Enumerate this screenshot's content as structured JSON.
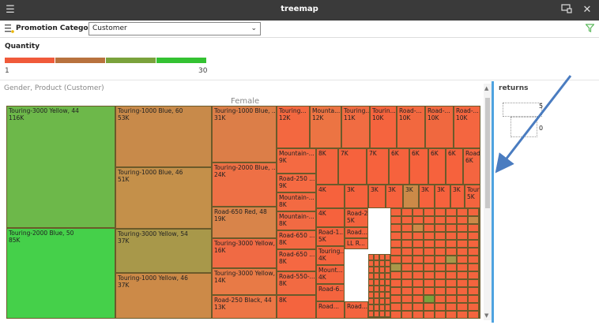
{
  "window": {
    "title": "treemap"
  },
  "filter": {
    "label": "Promotion Category...",
    "value": "Customer"
  },
  "legend": {
    "title": "Quantity",
    "min": "1",
    "max": "30",
    "colors": [
      "#f05a3a",
      "#b8723e",
      "#7aa23c",
      "#34c232"
    ]
  },
  "viz": {
    "label": "Gender, Product (Customer)",
    "group": "Female"
  },
  "cells": [
    {
      "name": "Touring-3000 Yellow, 44",
      "value": "116K",
      "color": "#6db84a"
    },
    {
      "name": "Touring-2000 Blue, 50",
      "value": "85K",
      "color": "#45d04a"
    },
    {
      "name": "Touring-1000 Blue, 60",
      "value": "53K",
      "color": "#c88a4a"
    },
    {
      "name": "Touring-1000 Blue, 46",
      "value": "51K",
      "color": "#c4904a"
    },
    {
      "name": "Touring-3000 Yellow, 54",
      "value": "37K",
      "color": "#a8984a"
    },
    {
      "name": "Touring-1000 Yellow, 46",
      "value": "37K",
      "color": "#cc8a48"
    },
    {
      "name": "Touring-1000 Blue, ...",
      "value": "31K",
      "color": "#dc7e48"
    },
    {
      "name": "Touring-2000 Blue, ...",
      "value": "24K",
      "color": "#ee7045"
    },
    {
      "name": "Road-650 Red, 48",
      "value": "19K",
      "color": "#d8844a"
    },
    {
      "name": "Touring-3000 Yellow, ...",
      "value": "16K",
      "color": "#f06a44"
    },
    {
      "name": "Touring-3000 Yellow, ...",
      "value": "14K",
      "color": "#e87a46"
    },
    {
      "name": "Road-250 Black, 44",
      "value": "13K",
      "color": "#ec7645"
    },
    {
      "name": "Touring...",
      "value": "12K",
      "color": "#f36840"
    },
    {
      "name": "Mounta...",
      "value": "12K",
      "color": "#ec7443"
    },
    {
      "name": "Touring...",
      "value": "11K",
      "color": "#f06c42"
    },
    {
      "name": "Tourin...",
      "value": "10K",
      "color": "#f5643e"
    },
    {
      "name": "Road-...",
      "value": "10K",
      "color": "#f2683f"
    },
    {
      "name": "Road-...",
      "value": "10K",
      "color": "#f0683f"
    },
    {
      "name": "Road-...",
      "value": "10K",
      "color": "#f46640"
    },
    {
      "name": "Mountain-...",
      "value": "9K",
      "color": "#f46a42"
    },
    {
      "name": "Road-250 ...",
      "value": "9K",
      "color": "#f56a42"
    },
    {
      "name": "Mountain-...",
      "value": "8K",
      "color": "#f36a42"
    },
    {
      "name": "Mountain-...",
      "value": "8K",
      "color": "#f16a43"
    },
    {
      "name": "Road-650 ...",
      "value": "8K",
      "color": "#f46842"
    },
    {
      "name": "Road-650 ...",
      "value": "8K",
      "color": "#f56842"
    },
    {
      "name": "Road-550-...",
      "value": "8K",
      "color": "#f26a42"
    },
    {
      "name": "",
      "value": "8K",
      "color": "#f4643e"
    },
    {
      "name": "",
      "value": "8K",
      "color": "#f4643e"
    },
    {
      "name": "",
      "value": "7K",
      "color": "#f6623d"
    },
    {
      "name": "",
      "value": "7K",
      "color": "#f6623d"
    },
    {
      "name": "",
      "value": "6K",
      "color": "#f6623d"
    },
    {
      "name": "",
      "value": "6K",
      "color": "#f6623d"
    },
    {
      "name": "",
      "value": "6K",
      "color": "#f6623d"
    },
    {
      "name": "",
      "value": "6K",
      "color": "#f6623d"
    },
    {
      "name": "Road-6...",
      "value": "6K",
      "color": "#f46540"
    },
    {
      "name": "",
      "value": "4K",
      "color": "#f6623d"
    },
    {
      "name": "",
      "value": "3K",
      "color": "#f6623d"
    },
    {
      "name": "",
      "value": "3K",
      "color": "#f6623d"
    },
    {
      "name": "",
      "value": "3K",
      "color": "#f6623d"
    },
    {
      "name": "",
      "value": "3K",
      "color": "#cc8a48"
    },
    {
      "name": "",
      "value": "3K",
      "color": "#f6623d"
    },
    {
      "name": "",
      "value": "3K",
      "color": "#f6623d"
    },
    {
      "name": "",
      "value": "3K",
      "color": "#f6623d"
    },
    {
      "name": "Tourin...",
      "value": "5K",
      "color": "#f4643e"
    },
    {
      "name": "",
      "value": "4K",
      "color": "#f6623d"
    },
    {
      "name": "Road-2...",
      "value": "5K",
      "color": "#f4643e"
    },
    {
      "name": "Road-1...",
      "value": "5K",
      "color": "#f4643e"
    },
    {
      "name": "Touring...",
      "value": "4K",
      "color": "#f4643e"
    },
    {
      "name": "Mount...",
      "value": "4K",
      "color": "#f4643e"
    },
    {
      "name": "Road-6...",
      "value": "",
      "color": "#f4643e"
    },
    {
      "name": "Road...",
      "value": "",
      "color": "#f4643e"
    },
    {
      "name": "Road...",
      "value": "",
      "color": "#f4643e"
    },
    {
      "name": "Road...",
      "value": "",
      "color": "#f4643e"
    },
    {
      "name": "LL R...",
      "value": "",
      "color": "#f4643e"
    }
  ],
  "side": {
    "title": "returns",
    "mini_labels": [
      "5",
      "0"
    ]
  }
}
